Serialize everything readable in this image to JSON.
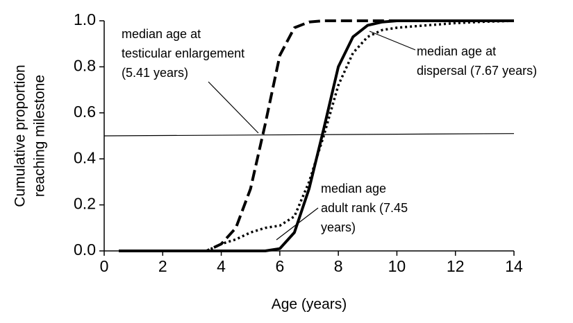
{
  "chart_data": {
    "type": "line",
    "xlabel": "Age (years)",
    "ylabel": [
      "Cumulative proportion",
      "reaching milestone"
    ],
    "x": [
      0.5,
      1,
      1.5,
      2,
      2.5,
      3,
      3.5,
      4,
      4.5,
      5,
      5.5,
      6,
      6.5,
      7,
      7.5,
      8,
      8.5,
      9,
      9.5,
      10,
      10.5,
      11,
      11.5,
      12,
      12.5,
      13,
      13.5,
      14
    ],
    "series": [
      {
        "color": "#000000",
        "dash": "dashed",
        "values": [
          0,
          0,
          0,
          0,
          0,
          0,
          0,
          0.03,
          0.1,
          0.27,
          0.55,
          0.85,
          0.97,
          0.995,
          1,
          1,
          1,
          1,
          1,
          1,
          1,
          1,
          1,
          1,
          1,
          1,
          1,
          1
        ]
      },
      {
        "color": "#000000",
        "dash": "solid",
        "values": [
          0,
          0,
          0,
          0,
          0,
          0,
          0,
          0,
          0,
          0,
          0,
          0.01,
          0.08,
          0.27,
          0.53,
          0.8,
          0.93,
          0.98,
          0.995,
          1,
          1,
          1,
          1,
          1,
          1,
          1,
          1,
          1
        ]
      },
      {
        "color": "#000000",
        "dash": "dotted",
        "values": [
          0,
          0,
          0,
          0,
          0,
          0,
          0,
          0.03,
          0.05,
          0.08,
          0.1,
          0.11,
          0.15,
          0.3,
          0.5,
          0.72,
          0.86,
          0.93,
          0.96,
          0.97,
          0.975,
          0.98,
          0.985,
          0.99,
          0.993,
          0.996,
          0.998,
          1
        ]
      }
    ],
    "reference_line": {
      "x": [
        0,
        14
      ],
      "y": [
        0.5,
        0.51
      ]
    },
    "annotations": [
      {
        "lines": [
          "median age at",
          "testicular enlargement",
          " (5.41 years)"
        ]
      },
      {
        "lines": [
          "median age at",
          "dispersal (7.67 years)"
        ]
      },
      {
        "lines": [
          "median age",
          "adult rank  (7.45",
          "years)"
        ]
      }
    ],
    "xlim": [
      0,
      14
    ],
    "xticks": [
      0,
      2,
      4,
      6,
      8,
      10,
      12,
      14
    ],
    "ylim": [
      0,
      1
    ],
    "yticks": [
      {
        "value": 0,
        "label": "0.0"
      },
      0.2,
      0.4,
      0.6,
      0.8,
      {
        "value": 1,
        "label": "1.0"
      }
    ]
  }
}
